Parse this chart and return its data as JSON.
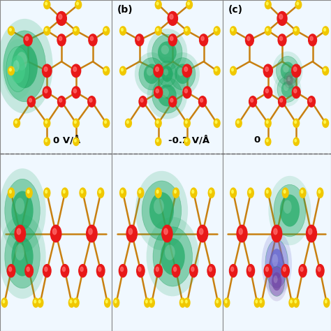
{
  "fig_width": 4.74,
  "fig_height": 4.74,
  "dpi": 100,
  "fig_bg": "#a8a8a8",
  "panel_bg_top": "#f0f8ff",
  "panel_bg_bot": "#f0f8ff",
  "border_color": "#888888",
  "col_bounds": [
    0.0,
    0.338,
    0.672,
    1.0
  ],
  "row_split": 0.535,
  "label_b": "(b)",
  "label_c": "(c)",
  "field_0": "0 V/Å",
  "field_1": "-0.2 V/Å",
  "field_2": "0",
  "atom_red": "#e81818",
  "atom_red_hi": "#ff7070",
  "atom_yellow": "#f0c800",
  "atom_yellow_hi": "#ffff60",
  "bond_color": "#c88010",
  "bond_lw": 1.8,
  "green1": "#22aa66",
  "green2": "#44cc88",
  "green_light": "#88ddbb",
  "green_outline": "#109950",
  "blue1": "#6060cc",
  "blue2": "#8888ee",
  "purple1": "#7040a0",
  "grey1": "#707070",
  "dashed_color": "#666666"
}
